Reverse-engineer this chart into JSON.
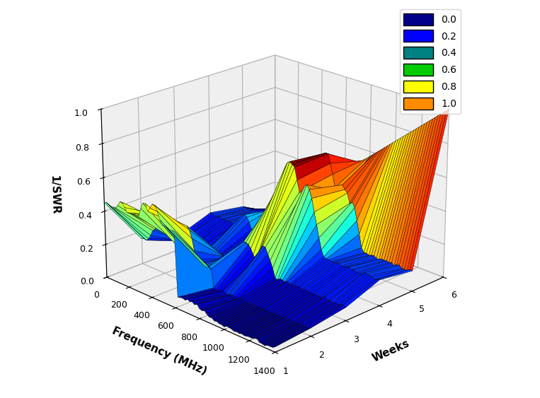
{
  "freq_min": 0,
  "freq_max": 1400,
  "freq_steps": 71,
  "week_min": 1,
  "week_max": 6,
  "week_steps": 6,
  "zlim": [
    0.0,
    1.0
  ],
  "zlabel": "1/SWR",
  "xlabel": "Weeks",
  "ylabel": "Frequency (MHz)",
  "zticks": [
    0.0,
    0.2,
    0.4,
    0.6,
    0.8,
    1.0
  ],
  "colormap": "jet",
  "legend_labels": [
    "0.0",
    "0.2",
    "0.4",
    "0.6",
    "0.8",
    "1.0"
  ],
  "legend_colors": [
    "#00008B",
    "#0000FF",
    "#008080",
    "#00CC00",
    "#FFFF00",
    "#FF8C00"
  ],
  "background_color": "#ffffff",
  "elev": 22,
  "azim": -135
}
